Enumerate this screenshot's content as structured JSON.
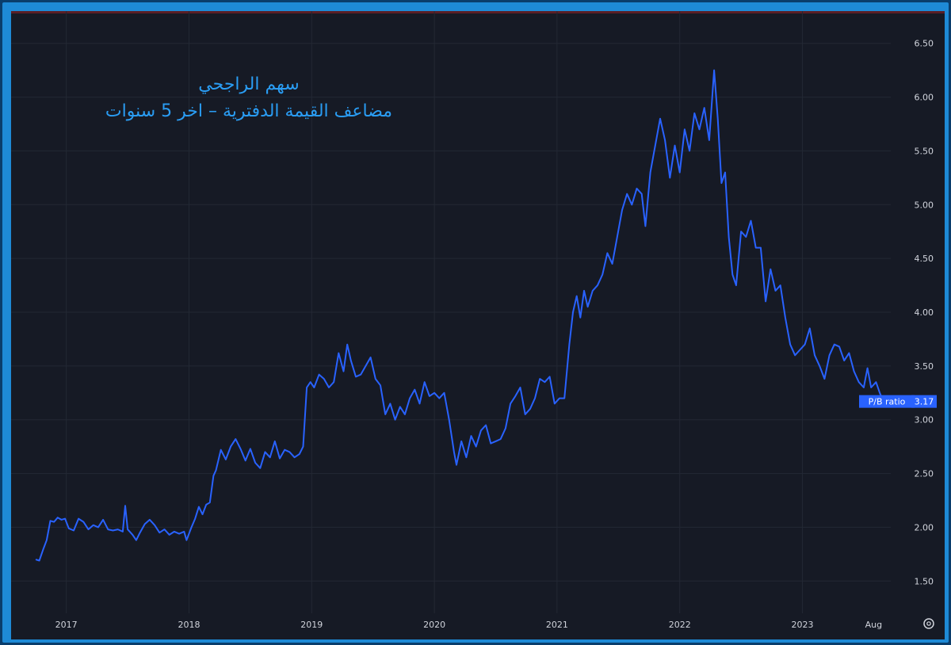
{
  "chart_data": {
    "type": "line",
    "title": "سهم الراجحي",
    "subtitle": "مضاعف القيمة الدفترية – اخر 5 سنوات",
    "xlabel": "",
    "ylabel": "",
    "grid": true,
    "ylim": [
      1.2,
      6.8
    ],
    "xlim": [
      2016.55,
      2023.72
    ],
    "yticks": [
      1.5,
      2.0,
      2.5,
      3.0,
      3.5,
      4.0,
      4.5,
      5.0,
      5.5,
      6.0,
      6.5
    ],
    "ytick_labels": [
      "1.50",
      "2.00",
      "2.50",
      "3.00",
      "3.50",
      "4.00",
      "4.50",
      "5.00",
      "5.50",
      "6.00",
      "6.50"
    ],
    "xticks": [
      {
        "x": 2017.0,
        "label": "2017"
      },
      {
        "x": 2018.0,
        "label": "2018"
      },
      {
        "x": 2019.0,
        "label": "2019"
      },
      {
        "x": 2020.0,
        "label": "2020"
      },
      {
        "x": 2021.0,
        "label": "2021"
      },
      {
        "x": 2022.0,
        "label": "2022"
      },
      {
        "x": 2023.0,
        "label": "2023"
      },
      {
        "x": 2023.58,
        "label": "Aug"
      }
    ],
    "series": [
      {
        "name": "P/B ratio",
        "color": "#2962ff",
        "last_value": "3.17",
        "points": [
          [
            2016.75,
            1.7
          ],
          [
            2016.78,
            1.69
          ],
          [
            2016.81,
            1.79
          ],
          [
            2016.84,
            1.88
          ],
          [
            2016.87,
            2.06
          ],
          [
            2016.9,
            2.05
          ],
          [
            2016.93,
            2.09
          ],
          [
            2016.96,
            2.07
          ],
          [
            2016.99,
            2.08
          ],
          [
            2017.02,
            1.99
          ],
          [
            2017.06,
            1.97
          ],
          [
            2017.1,
            2.08
          ],
          [
            2017.14,
            2.05
          ],
          [
            2017.18,
            1.98
          ],
          [
            2017.22,
            2.02
          ],
          [
            2017.26,
            2.0
          ],
          [
            2017.3,
            2.07
          ],
          [
            2017.34,
            1.98
          ],
          [
            2017.38,
            1.97
          ],
          [
            2017.42,
            1.98
          ],
          [
            2017.46,
            1.96
          ],
          [
            2017.48,
            2.2
          ],
          [
            2017.5,
            1.98
          ],
          [
            2017.54,
            1.93
          ],
          [
            2017.57,
            1.88
          ],
          [
            2017.6,
            1.95
          ],
          [
            2017.64,
            2.03
          ],
          [
            2017.68,
            2.07
          ],
          [
            2017.72,
            2.02
          ],
          [
            2017.76,
            1.95
          ],
          [
            2017.8,
            1.98
          ],
          [
            2017.84,
            1.93
          ],
          [
            2017.88,
            1.96
          ],
          [
            2017.92,
            1.94
          ],
          [
            2017.96,
            1.96
          ],
          [
            2017.98,
            1.88
          ],
          [
            2018.02,
            2.0
          ],
          [
            2018.05,
            2.08
          ],
          [
            2018.08,
            2.19
          ],
          [
            2018.11,
            2.12
          ],
          [
            2018.14,
            2.21
          ],
          [
            2018.17,
            2.23
          ],
          [
            2018.2,
            2.48
          ],
          [
            2018.22,
            2.53
          ],
          [
            2018.26,
            2.72
          ],
          [
            2018.3,
            2.63
          ],
          [
            2018.34,
            2.75
          ],
          [
            2018.38,
            2.82
          ],
          [
            2018.42,
            2.73
          ],
          [
            2018.46,
            2.62
          ],
          [
            2018.5,
            2.73
          ],
          [
            2018.54,
            2.6
          ],
          [
            2018.58,
            2.55
          ],
          [
            2018.62,
            2.7
          ],
          [
            2018.66,
            2.65
          ],
          [
            2018.7,
            2.8
          ],
          [
            2018.74,
            2.64
          ],
          [
            2018.78,
            2.72
          ],
          [
            2018.82,
            2.7
          ],
          [
            2018.86,
            2.65
          ],
          [
            2018.9,
            2.68
          ],
          [
            2018.93,
            2.75
          ],
          [
            2018.96,
            3.3
          ],
          [
            2018.99,
            3.35
          ],
          [
            2019.02,
            3.3
          ],
          [
            2019.06,
            3.42
          ],
          [
            2019.1,
            3.38
          ],
          [
            2019.14,
            3.3
          ],
          [
            2019.18,
            3.35
          ],
          [
            2019.22,
            3.62
          ],
          [
            2019.26,
            3.45
          ],
          [
            2019.29,
            3.7
          ],
          [
            2019.32,
            3.55
          ],
          [
            2019.36,
            3.4
          ],
          [
            2019.4,
            3.42
          ],
          [
            2019.44,
            3.5
          ],
          [
            2019.48,
            3.58
          ],
          [
            2019.52,
            3.38
          ],
          [
            2019.56,
            3.32
          ],
          [
            2019.6,
            3.05
          ],
          [
            2019.64,
            3.15
          ],
          [
            2019.68,
            3.0
          ],
          [
            2019.72,
            3.12
          ],
          [
            2019.76,
            3.05
          ],
          [
            2019.8,
            3.2
          ],
          [
            2019.84,
            3.28
          ],
          [
            2019.88,
            3.15
          ],
          [
            2019.92,
            3.35
          ],
          [
            2019.96,
            3.22
          ],
          [
            2020.0,
            3.25
          ],
          [
            2020.04,
            3.2
          ],
          [
            2020.08,
            3.25
          ],
          [
            2020.12,
            3.0
          ],
          [
            2020.16,
            2.7
          ],
          [
            2020.18,
            2.58
          ],
          [
            2020.22,
            2.8
          ],
          [
            2020.26,
            2.65
          ],
          [
            2020.3,
            2.85
          ],
          [
            2020.34,
            2.75
          ],
          [
            2020.38,
            2.9
          ],
          [
            2020.42,
            2.95
          ],
          [
            2020.46,
            2.78
          ],
          [
            2020.5,
            2.8
          ],
          [
            2020.54,
            2.82
          ],
          [
            2020.58,
            2.92
          ],
          [
            2020.62,
            3.15
          ],
          [
            2020.66,
            3.22
          ],
          [
            2020.7,
            3.3
          ],
          [
            2020.74,
            3.05
          ],
          [
            2020.78,
            3.1
          ],
          [
            2020.82,
            3.2
          ],
          [
            2020.86,
            3.38
          ],
          [
            2020.9,
            3.35
          ],
          [
            2020.94,
            3.4
          ],
          [
            2020.98,
            3.15
          ],
          [
            2021.02,
            3.2
          ],
          [
            2021.06,
            3.2
          ],
          [
            2021.1,
            3.7
          ],
          [
            2021.13,
            4.0
          ],
          [
            2021.16,
            4.15
          ],
          [
            2021.19,
            3.95
          ],
          [
            2021.22,
            4.2
          ],
          [
            2021.25,
            4.05
          ],
          [
            2021.29,
            4.2
          ],
          [
            2021.33,
            4.25
          ],
          [
            2021.37,
            4.35
          ],
          [
            2021.41,
            4.55
          ],
          [
            2021.45,
            4.45
          ],
          [
            2021.49,
            4.7
          ],
          [
            2021.53,
            4.95
          ],
          [
            2021.57,
            5.1
          ],
          [
            2021.61,
            5.0
          ],
          [
            2021.65,
            5.15
          ],
          [
            2021.69,
            5.1
          ],
          [
            2021.72,
            4.8
          ],
          [
            2021.76,
            5.3
          ],
          [
            2021.8,
            5.55
          ],
          [
            2021.84,
            5.8
          ],
          [
            2021.88,
            5.6
          ],
          [
            2021.92,
            5.25
          ],
          [
            2021.96,
            5.55
          ],
          [
            2022.0,
            5.3
          ],
          [
            2022.04,
            5.7
          ],
          [
            2022.08,
            5.5
          ],
          [
            2022.12,
            5.85
          ],
          [
            2022.16,
            5.7
          ],
          [
            2022.2,
            5.9
          ],
          [
            2022.24,
            5.6
          ],
          [
            2022.28,
            6.25
          ],
          [
            2022.31,
            5.8
          ],
          [
            2022.34,
            5.2
          ],
          [
            2022.37,
            5.3
          ],
          [
            2022.4,
            4.7
          ],
          [
            2022.43,
            4.35
          ],
          [
            2022.46,
            4.25
          ],
          [
            2022.5,
            4.75
          ],
          [
            2022.54,
            4.7
          ],
          [
            2022.58,
            4.85
          ],
          [
            2022.62,
            4.6
          ],
          [
            2022.66,
            4.6
          ],
          [
            2022.7,
            4.1
          ],
          [
            2022.74,
            4.4
          ],
          [
            2022.78,
            4.2
          ],
          [
            2022.82,
            4.25
          ],
          [
            2022.86,
            3.95
          ],
          [
            2022.9,
            3.7
          ],
          [
            2022.94,
            3.6
          ],
          [
            2022.98,
            3.65
          ],
          [
            2023.02,
            3.7
          ],
          [
            2023.06,
            3.85
          ],
          [
            2023.1,
            3.6
          ],
          [
            2023.14,
            3.5
          ],
          [
            2023.18,
            3.38
          ],
          [
            2023.22,
            3.6
          ],
          [
            2023.26,
            3.7
          ],
          [
            2023.3,
            3.68
          ],
          [
            2023.34,
            3.55
          ],
          [
            2023.38,
            3.62
          ],
          [
            2023.42,
            3.45
          ],
          [
            2023.46,
            3.35
          ],
          [
            2023.5,
            3.3
          ],
          [
            2023.53,
            3.48
          ],
          [
            2023.56,
            3.3
          ],
          [
            2023.6,
            3.35
          ],
          [
            2023.63,
            3.25
          ],
          [
            2023.66,
            3.17
          ]
        ]
      }
    ],
    "last_label": {
      "name": "P/B ratio",
      "value": "3.17"
    },
    "settings_icon": "gear-icon"
  }
}
